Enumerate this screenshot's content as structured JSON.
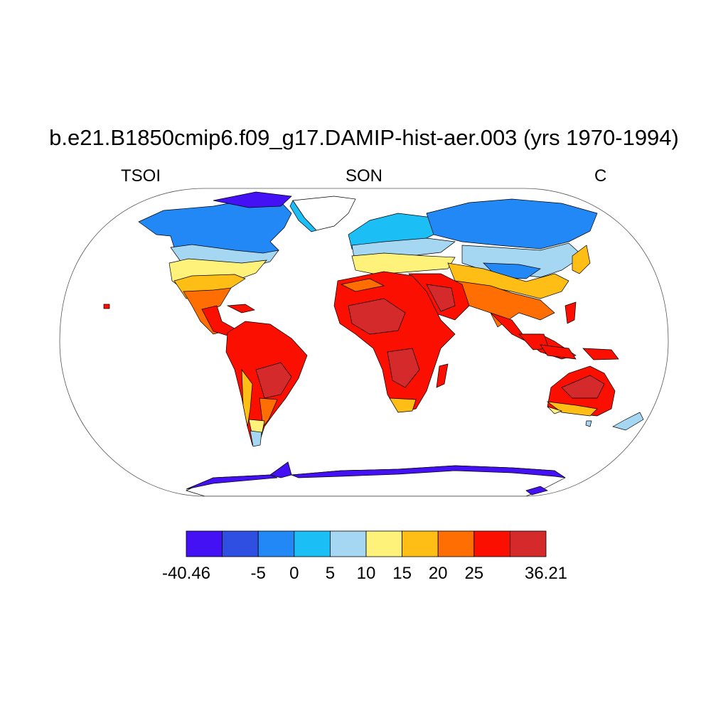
{
  "title": "b.e21.B1850cmip6.f09_g17.DAMIP-hist-aer.003 (yrs 1970-1994)",
  "subtitles": {
    "left": "TSOI",
    "center": "SON",
    "right": "C"
  },
  "colorbar": {
    "colors": [
      "#4411f5",
      "#2f4fe3",
      "#2288f5",
      "#1bbff5",
      "#a5d7f2",
      "#fff27a",
      "#ffbe15",
      "#ff6e03",
      "#fa0f00",
      "#d42a2c"
    ],
    "labels": [
      "-40.46",
      "-5",
      "0",
      "5",
      "10",
      "15",
      "20",
      "25",
      "36.21"
    ],
    "boundaries": [
      -40.46,
      -10,
      -5,
      0,
      5,
      10,
      15,
      20,
      25,
      30,
      36.21
    ]
  },
  "palette": {
    "ocean": "#ffffff",
    "coast": "#000000"
  }
}
